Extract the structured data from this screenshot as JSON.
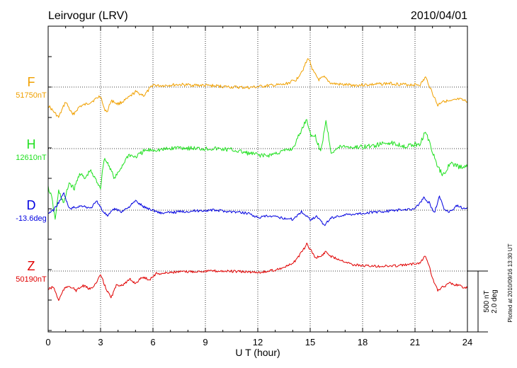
{
  "chart_data": {
    "type": "line",
    "title": "Leirvogur (LRV)",
    "date": "2010/04/01",
    "xlabel": "U T (hour)",
    "xlim": [
      0,
      24
    ],
    "xticks": [
      "0",
      "3",
      "6",
      "9",
      "12",
      "15",
      "18",
      "21",
      "24"
    ],
    "grid": "dotted vertical at every 3 hours",
    "scale_bar": {
      "line1": "500 nT",
      "line2": "2.0 deg"
    },
    "plotted_note": "Plotted at 2010/09/16 13:30 UT",
    "series": [
      {
        "name": "F",
        "baseline_label": "51750nT",
        "color": "#f0a000",
        "unit": "nT",
        "baseline": 51750,
        "x": [
          0,
          0.3,
          0.6,
          1,
          1.4,
          1.8,
          2.2,
          2.6,
          3,
          3.2,
          3.4,
          3.6,
          4,
          4.5,
          5,
          5.5,
          6,
          6.3,
          6.8,
          7.5,
          8.5,
          9.5,
          10.5,
          11.5,
          12.5,
          13.5,
          14.2,
          14.6,
          14.9,
          15.2,
          15.5,
          15.8,
          16.2,
          16.8,
          17.5,
          18.5,
          19.5,
          20.5,
          21.3,
          21.6,
          21.8,
          22,
          22.3,
          22.6,
          23,
          23.5,
          24
        ],
        "y": [
          -150,
          -200,
          -250,
          -120,
          -230,
          -160,
          -140,
          -110,
          -70,
          -180,
          -200,
          -110,
          -140,
          -100,
          -40,
          -70,
          20,
          10,
          15,
          20,
          15,
          10,
          0,
          -5,
          10,
          20,
          60,
          150,
          240,
          120,
          60,
          80,
          30,
          20,
          15,
          20,
          30,
          20,
          20,
          80,
          20,
          -50,
          -150,
          -110,
          -120,
          -100,
          -120
        ]
      },
      {
        "name": "H",
        "baseline_label": "12610nT",
        "color": "#1fe01f",
        "unit": "nT",
        "baseline": 12610,
        "x": [
          0,
          0.2,
          0.4,
          0.6,
          0.9,
          1.2,
          1.5,
          1.8,
          2.1,
          2.4,
          2.7,
          3,
          3.2,
          3.5,
          3.8,
          4.2,
          4.6,
          5,
          5.5,
          6,
          6.5,
          7,
          7.5,
          8.5,
          9.5,
          10.5,
          11.5,
          12.5,
          13.5,
          14,
          14.5,
          14.8,
          15,
          15.3,
          15.6,
          15.9,
          16.2,
          16.8,
          17.5,
          18.5,
          19.5,
          20.5,
          21.3,
          21.6,
          21.8,
          22,
          22.3,
          22.6,
          23,
          23.5,
          24
        ],
        "y": [
          -320,
          -400,
          -580,
          -350,
          -450,
          -280,
          -330,
          -200,
          -250,
          -180,
          -250,
          -320,
          -80,
          -140,
          -250,
          -150,
          -50,
          -70,
          -20,
          -10,
          -10,
          0,
          10,
          0,
          0,
          -10,
          -40,
          -60,
          -20,
          0,
          150,
          250,
          120,
          100,
          -30,
          230,
          -30,
          20,
          10,
          20,
          50,
          20,
          40,
          150,
          60,
          -30,
          -150,
          -220,
          -120,
          -150,
          -150
        ]
      },
      {
        "name": "D",
        "baseline_label": "-13.6deg",
        "color": "#0000e0",
        "unit": "deg",
        "baseline": -13.6,
        "x": [
          0,
          0.3,
          0.6,
          0.9,
          1.2,
          1.6,
          2,
          2.4,
          2.8,
          3.1,
          3.4,
          3.8,
          4.2,
          4.6,
          5,
          5.5,
          6,
          6.5,
          7.5,
          8.5,
          9.5,
          10.5,
          11.5,
          12,
          12.5,
          13,
          14,
          14.5,
          15,
          15.4,
          15.8,
          16.2,
          17,
          18,
          19,
          20,
          21,
          21.5,
          21.8,
          22.1,
          22.4,
          22.7,
          23,
          23.4,
          23.8,
          24
        ],
        "y": [
          -0.1,
          0,
          0.25,
          0.55,
          0.05,
          0.1,
          0.15,
          0.05,
          0.3,
          0,
          -0.2,
          0.05,
          -0.05,
          0.1,
          0.3,
          0.1,
          0,
          -0.1,
          -0.05,
          -0.02,
          0,
          -0.05,
          -0.1,
          -0.25,
          -0.2,
          -0.22,
          -0.3,
          -0.05,
          -0.3,
          -0.2,
          -0.5,
          -0.25,
          -0.15,
          -0.1,
          -0.05,
          0,
          0.05,
          0.4,
          0.25,
          -0.1,
          0.45,
          0,
          -0.05,
          0.15,
          0.05,
          0.1
        ]
      },
      {
        "name": "Z",
        "baseline_label": "50190nT",
        "color": "#e00000",
        "unit": "nT",
        "baseline": 50190,
        "x": [
          0,
          0.3,
          0.6,
          0.9,
          1.2,
          1.6,
          2,
          2.4,
          2.8,
          3,
          3.3,
          3.6,
          3.9,
          4.3,
          4.7,
          5,
          5.4,
          5.8,
          6.2,
          6.6,
          7,
          8,
          9,
          10,
          11,
          12,
          12.5,
          13,
          13.5,
          14,
          14.5,
          14.8,
          15,
          15.3,
          15.6,
          15.9,
          16.2,
          16.8,
          17.5,
          18.5,
          19.5,
          20.5,
          21.3,
          21.6,
          21.8,
          22,
          22.3,
          22.6,
          23,
          23.5,
          24
        ],
        "y": [
          -150,
          -130,
          -240,
          -150,
          -120,
          -160,
          -120,
          -150,
          -90,
          -30,
          -140,
          -220,
          -120,
          -110,
          -70,
          -100,
          -50,
          -70,
          -20,
          -20,
          -10,
          -5,
          0,
          0,
          -5,
          -10,
          -5,
          10,
          30,
          60,
          150,
          220,
          180,
          110,
          120,
          160,
          120,
          90,
          50,
          40,
          40,
          50,
          70,
          130,
          50,
          -60,
          -160,
          -130,
          -100,
          -120,
          -140
        ]
      }
    ]
  }
}
